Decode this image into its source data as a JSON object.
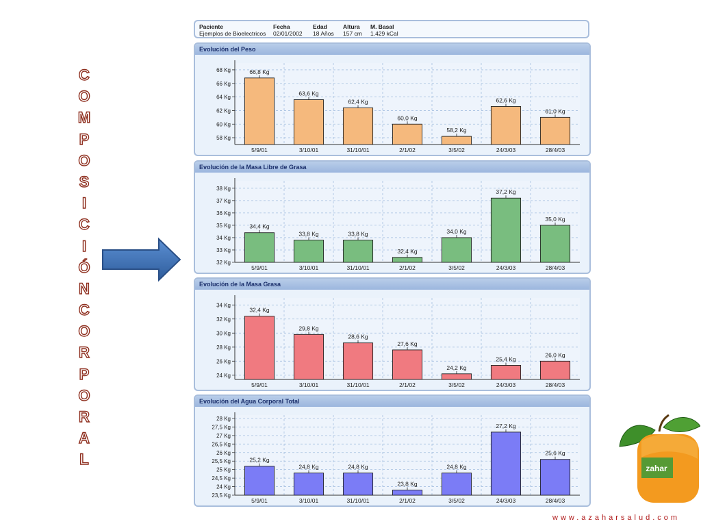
{
  "side_title": [
    "C",
    "O",
    "M",
    "P",
    "O",
    "S",
    "I",
    "C",
    "I",
    "Ó",
    "N",
    "C",
    "O",
    "R",
    "P",
    "O",
    "R",
    "A",
    "L"
  ],
  "patient": {
    "headers": [
      "Paciente",
      "Fecha",
      "Edad",
      "Altura",
      "M. Basal"
    ],
    "values": [
      "Ejemplos de Bioelectricos",
      "02/01/2002",
      "18 Años",
      "157 cm",
      "1.429 kCal"
    ]
  },
  "footer_url": "www.azaharsalud.com",
  "logo_text": "zahar",
  "colors": {
    "accent_border": "#a9bedc",
    "title_text": "#1b2f6b",
    "vertical_text": "#8e2e1e",
    "arrow": "#3a6db5",
    "footer": "#b01a1a"
  },
  "chart_data": [
    {
      "type": "bar",
      "title": "Evolución del Peso",
      "categories": [
        "5/9/01",
        "3/10/01",
        "31/10/01",
        "2/1/02",
        "3/5/02",
        "24/3/03",
        "28/4/03"
      ],
      "values": [
        66.8,
        63.6,
        62.4,
        60.0,
        58.2,
        62.6,
        61.0
      ],
      "value_labels": [
        "66,8 Kg",
        "63,6 Kg",
        "62,4 Kg",
        "60,0 Kg",
        "58,2 Kg",
        "62,6 Kg",
        "61,0 Kg"
      ],
      "yticks": [
        58,
        60,
        62,
        64,
        66,
        68
      ],
      "ytick_labels": [
        "58 Kg",
        "60 Kg",
        "62 Kg",
        "64 Kg",
        "66 Kg",
        "68 Kg"
      ],
      "ylim": [
        57,
        69
      ],
      "color": "#f5b97d",
      "grid": true
    },
    {
      "type": "bar",
      "title": "Evolución de la Masa Libre de Grasa",
      "categories": [
        "5/9/01",
        "3/10/01",
        "31/10/01",
        "2/1/02",
        "3/5/02",
        "24/3/03",
        "28/4/03"
      ],
      "values": [
        34.4,
        33.8,
        33.8,
        32.4,
        34.0,
        37.2,
        35.0
      ],
      "value_labels": [
        "34,4 Kg",
        "33,8 Kg",
        "33,8 Kg",
        "32,4 Kg",
        "34,0 Kg",
        "37,2 Kg",
        "35,0 Kg"
      ],
      "yticks": [
        32,
        33,
        34,
        35,
        36,
        37,
        38
      ],
      "ytick_labels": [
        "32 Kg",
        "33 Kg",
        "34 Kg",
        "35 Kg",
        "36 Kg",
        "37 Kg",
        "38 Kg"
      ],
      "ylim": [
        32,
        38.6
      ],
      "color": "#79bd7f",
      "grid": true
    },
    {
      "type": "bar",
      "title": "Evolución de la Masa Grasa",
      "categories": [
        "5/9/01",
        "3/10/01",
        "31/10/01",
        "2/1/02",
        "3/5/02",
        "24/3/03",
        "28/4/03"
      ],
      "values": [
        32.4,
        29.8,
        28.6,
        27.6,
        24.2,
        25.4,
        26.0
      ],
      "value_labels": [
        "32,4 Kg",
        "29,8 Kg",
        "28,6 Kg",
        "27,6 Kg",
        "24,2 Kg",
        "25,4 Kg",
        "26,0 Kg"
      ],
      "yticks": [
        24,
        26,
        28,
        30,
        32,
        34
      ],
      "ytick_labels": [
        "24 Kg",
        "26 Kg",
        "28 Kg",
        "30 Kg",
        "32 Kg",
        "34 Kg"
      ],
      "ylim": [
        23.4,
        35
      ],
      "color": "#f07a80",
      "grid": true
    },
    {
      "type": "bar",
      "title": "Evolución del Agua Corporal Total",
      "categories": [
        "5/9/01",
        "3/10/01",
        "31/10/01",
        "2/1/02",
        "3/5/02",
        "24/3/03",
        "28/4/03"
      ],
      "values": [
        25.2,
        24.8,
        24.8,
        23.8,
        24.8,
        27.2,
        25.6
      ],
      "value_labels": [
        "25,2 Kg",
        "24,8 Kg",
        "24,8 Kg",
        "23,8 Kg",
        "24,8 Kg",
        "27,2 Kg",
        "25,6 Kg"
      ],
      "yticks": [
        23.5,
        24,
        24.5,
        25,
        25.5,
        26,
        26.5,
        27,
        27.5,
        28
      ],
      "ytick_labels": [
        "23,5 Kg",
        "24 Kg",
        "24,5 Kg",
        "25 Kg",
        "25,5 Kg",
        "26 Kg",
        "26,5 Kg",
        "27 Kg",
        "27,5 Kg",
        "28 Kg"
      ],
      "ylim": [
        23.5,
        28.2
      ],
      "color": "#7b7cf6",
      "grid": true
    }
  ]
}
